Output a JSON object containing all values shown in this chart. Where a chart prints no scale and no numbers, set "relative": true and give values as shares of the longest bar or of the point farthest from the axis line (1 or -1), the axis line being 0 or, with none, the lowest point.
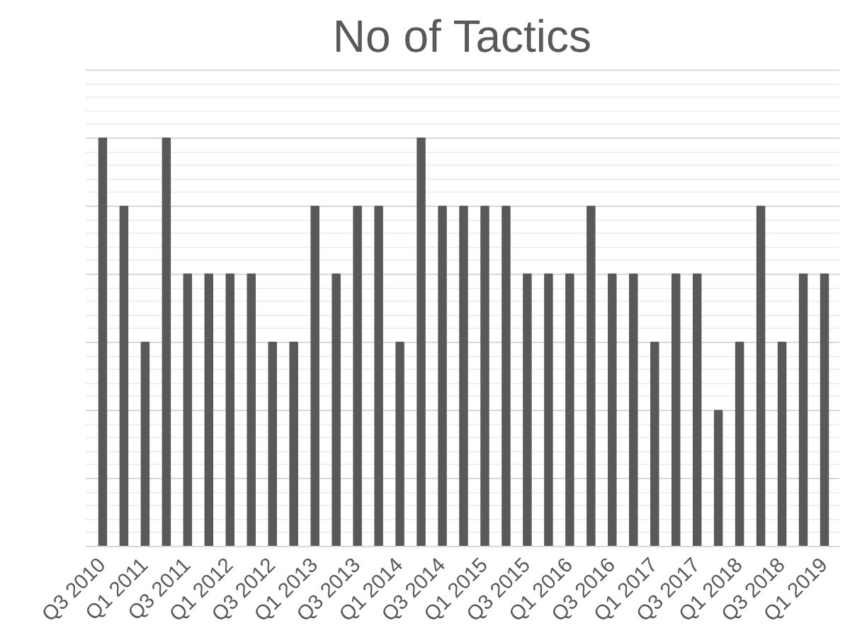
{
  "chart_data": {
    "type": "bar",
    "title": "No of Tactics",
    "relative": true,
    "grid": "y",
    "color": "#595959",
    "categories": [
      "Q3 2010",
      null,
      "Q1 2011",
      null,
      "Q3 2011",
      null,
      "Q1 2012",
      null,
      "Q3 2012",
      null,
      "Q1 2013",
      null,
      "Q3 2013",
      null,
      "Q1 2014",
      null,
      "Q3 2014",
      null,
      "Q1 2015",
      null,
      "Q3 2015",
      null,
      "Q1 2016",
      null,
      "Q3 2016",
      null,
      "Q1 2017",
      null,
      "Q3 2017",
      null,
      "Q1 2018",
      null,
      "Q3 2018",
      null,
      "Q1 2019"
    ],
    "values": [
      1,
      0.833,
      0.5,
      1,
      0.667,
      0.667,
      0.667,
      0.667,
      0.5,
      0.5,
      0.833,
      0.667,
      0.833,
      0.833,
      0.5,
      1,
      0.833,
      0.833,
      0.833,
      0.833,
      0.667,
      0.667,
      0.667,
      0.833,
      0.667,
      0.667,
      0.5,
      0.667,
      0.667,
      0.333,
      0.5,
      0.833,
      0.5,
      0.667,
      0.667
    ]
  }
}
